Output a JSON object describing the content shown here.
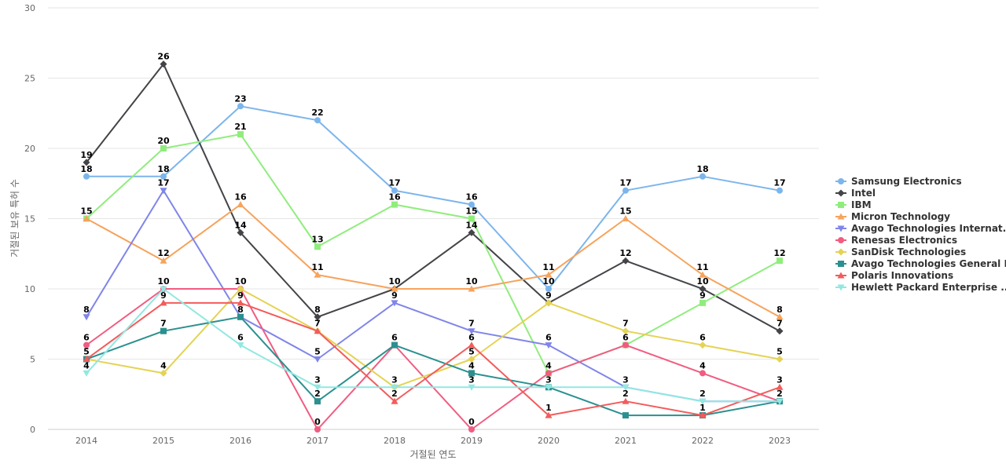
{
  "chart_data": {
    "type": "line",
    "xlabel": "거절된 연도",
    "ylabel": "거절된 보유 특허 수",
    "ylim": [
      0,
      30
    ],
    "yticks": [
      0,
      5,
      10,
      15,
      20,
      25,
      30
    ],
    "grid": true,
    "legend_position": "right",
    "categories": [
      "2014",
      "2015",
      "2016",
      "2017",
      "2018",
      "2019",
      "2020",
      "2021",
      "2022",
      "2023"
    ],
    "series": [
      {
        "name": "Samsung Electronics",
        "color": "#7cb5ec",
        "marker": "circle",
        "values": [
          18,
          18,
          23,
          22,
          17,
          16,
          10,
          17,
          18,
          17
        ]
      },
      {
        "name": "Intel",
        "color": "#434348",
        "marker": "diamond",
        "values": [
          19,
          26,
          14,
          8,
          10,
          14,
          9,
          12,
          10,
          7
        ]
      },
      {
        "name": "IBM",
        "color": "#90ed7d",
        "marker": "square",
        "values": [
          15,
          20,
          21,
          13,
          16,
          15,
          4,
          6,
          9,
          12
        ]
      },
      {
        "name": "Micron Technology",
        "color": "#f7a35c",
        "marker": "triangle",
        "values": [
          15,
          12,
          16,
          11,
          10,
          10,
          11,
          15,
          11,
          8
        ]
      },
      {
        "name": "Avago Technologies Internat...",
        "color": "#8085e9",
        "marker": "triangle-down",
        "values": [
          8,
          17,
          8,
          5,
          9,
          7,
          6,
          3,
          2,
          2
        ]
      },
      {
        "name": "Renesas Electronics",
        "color": "#f15c80",
        "marker": "circle",
        "values": [
          6,
          10,
          10,
          0,
          6,
          0,
          4,
          6,
          4,
          2
        ]
      },
      {
        "name": "SanDisk Technologies",
        "color": "#e4d354",
        "marker": "diamond",
        "values": [
          5,
          4,
          10,
          7,
          3,
          5,
          9,
          7,
          6,
          5
        ]
      },
      {
        "name": "Avago Technologies General IP",
        "color": "#2b908f",
        "marker": "square",
        "values": [
          5,
          7,
          8,
          2,
          6,
          4,
          3,
          1,
          1,
          2
        ]
      },
      {
        "name": "Polaris Innovations",
        "color": "#f45b5b",
        "marker": "triangle",
        "values": [
          5,
          9,
          9,
          7,
          2,
          6,
          1,
          2,
          1,
          3
        ]
      },
      {
        "name": "Hewlett Packard Enterprise ...",
        "color": "#91e8e1",
        "marker": "triangle-down",
        "values": [
          4,
          10,
          6,
          3,
          3,
          3,
          3,
          3,
          2,
          2
        ]
      }
    ],
    "data_labels": [
      {
        "x": "2014",
        "y": 19,
        "text": "19"
      },
      {
        "x": "2014",
        "y": 18,
        "text": "18"
      },
      {
        "x": "2014",
        "y": 15,
        "text": "15"
      },
      {
        "x": "2014",
        "y": 8,
        "text": "8"
      },
      {
        "x": "2014",
        "y": 6,
        "text": "6"
      },
      {
        "x": "2014",
        "y": 5,
        "text": "5"
      },
      {
        "x": "2014",
        "y": 4,
        "text": "4"
      },
      {
        "x": "2015",
        "y": 26,
        "text": "26"
      },
      {
        "x": "2015",
        "y": 20,
        "text": "20"
      },
      {
        "x": "2015",
        "y": 18,
        "text": "18"
      },
      {
        "x": "2015",
        "y": 17,
        "text": "17"
      },
      {
        "x": "2015",
        "y": 12,
        "text": "12"
      },
      {
        "x": "2015",
        "y": 10,
        "text": "10"
      },
      {
        "x": "2015",
        "y": 9,
        "text": "9"
      },
      {
        "x": "2015",
        "y": 7,
        "text": "7"
      },
      {
        "x": "2015",
        "y": 4,
        "text": "4"
      },
      {
        "x": "2016",
        "y": 23,
        "text": "23"
      },
      {
        "x": "2016",
        "y": 21,
        "text": "21"
      },
      {
        "x": "2016",
        "y": 16,
        "text": "16"
      },
      {
        "x": "2016",
        "y": 14,
        "text": "14"
      },
      {
        "x": "2016",
        "y": 10,
        "text": "10"
      },
      {
        "x": "2016",
        "y": 9,
        "text": "9"
      },
      {
        "x": "2016",
        "y": 8,
        "text": "8"
      },
      {
        "x": "2016",
        "y": 6,
        "text": "6"
      },
      {
        "x": "2017",
        "y": 22,
        "text": "22"
      },
      {
        "x": "2017",
        "y": 13,
        "text": "13"
      },
      {
        "x": "2017",
        "y": 11,
        "text": "11"
      },
      {
        "x": "2017",
        "y": 8,
        "text": "8"
      },
      {
        "x": "2017",
        "y": 7,
        "text": "7"
      },
      {
        "x": "2017",
        "y": 5,
        "text": "5"
      },
      {
        "x": "2017",
        "y": 3,
        "text": "3"
      },
      {
        "x": "2017",
        "y": 2,
        "text": "2"
      },
      {
        "x": "2017",
        "y": 0,
        "text": "0"
      },
      {
        "x": "2018",
        "y": 17,
        "text": "17"
      },
      {
        "x": "2018",
        "y": 16,
        "text": "16"
      },
      {
        "x": "2018",
        "y": 10,
        "text": "10"
      },
      {
        "x": "2018",
        "y": 9,
        "text": "9"
      },
      {
        "x": "2018",
        "y": 6,
        "text": "6"
      },
      {
        "x": "2018",
        "y": 3,
        "text": "3"
      },
      {
        "x": "2018",
        "y": 2,
        "text": "2"
      },
      {
        "x": "2019",
        "y": 16,
        "text": "16"
      },
      {
        "x": "2019",
        "y": 15,
        "text": "15"
      },
      {
        "x": "2019",
        "y": 14,
        "text": "14"
      },
      {
        "x": "2019",
        "y": 10,
        "text": "10"
      },
      {
        "x": "2019",
        "y": 7,
        "text": "7"
      },
      {
        "x": "2019",
        "y": 6,
        "text": "6"
      },
      {
        "x": "2019",
        "y": 5,
        "text": "5"
      },
      {
        "x": "2019",
        "y": 4,
        "text": "4"
      },
      {
        "x": "2019",
        "y": 3,
        "text": "3"
      },
      {
        "x": "2019",
        "y": 0,
        "text": "0"
      },
      {
        "x": "2020",
        "y": 11,
        "text": "11"
      },
      {
        "x": "2020",
        "y": 10,
        "text": "10"
      },
      {
        "x": "2020",
        "y": 9,
        "text": "9"
      },
      {
        "x": "2020",
        "y": 6,
        "text": "6"
      },
      {
        "x": "2020",
        "y": 4,
        "text": "4"
      },
      {
        "x": "2020",
        "y": 3,
        "text": "3"
      },
      {
        "x": "2020",
        "y": 1,
        "text": "1"
      },
      {
        "x": "2021",
        "y": 17,
        "text": "17"
      },
      {
        "x": "2021",
        "y": 15,
        "text": "15"
      },
      {
        "x": "2021",
        "y": 12,
        "text": "12"
      },
      {
        "x": "2021",
        "y": 7,
        "text": "7"
      },
      {
        "x": "2021",
        "y": 6,
        "text": "6"
      },
      {
        "x": "2021",
        "y": 3,
        "text": "3"
      },
      {
        "x": "2021",
        "y": 2,
        "text": "2"
      },
      {
        "x": "2022",
        "y": 18,
        "text": "18"
      },
      {
        "x": "2022",
        "y": 11,
        "text": "11"
      },
      {
        "x": "2022",
        "y": 10,
        "text": "10"
      },
      {
        "x": "2022",
        "y": 9,
        "text": "9"
      },
      {
        "x": "2022",
        "y": 6,
        "text": "6"
      },
      {
        "x": "2022",
        "y": 4,
        "text": "4"
      },
      {
        "x": "2022",
        "y": 2,
        "text": "2"
      },
      {
        "x": "2022",
        "y": 1,
        "text": "1"
      },
      {
        "x": "2023",
        "y": 17,
        "text": "17"
      },
      {
        "x": "2023",
        "y": 12,
        "text": "12"
      },
      {
        "x": "2023",
        "y": 8,
        "text": "8"
      },
      {
        "x": "2023",
        "y": 7,
        "text": "7"
      },
      {
        "x": "2023",
        "y": 5,
        "text": "5"
      },
      {
        "x": "2023",
        "y": 3,
        "text": "3"
      },
      {
        "x": "2023",
        "y": 2,
        "text": "2"
      }
    ]
  }
}
